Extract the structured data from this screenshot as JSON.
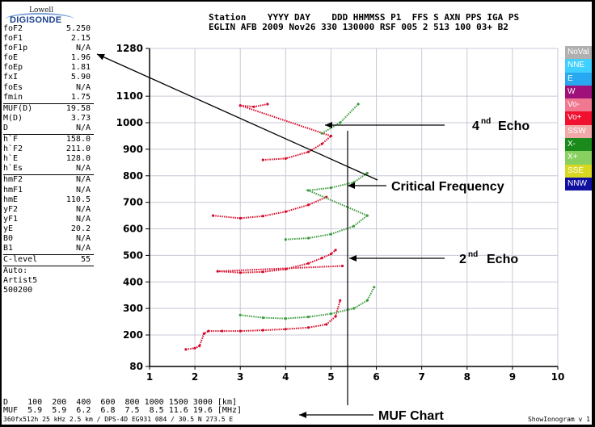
{
  "logo": {
    "line1": "Lowell",
    "line2": "DIGISONDE"
  },
  "header": {
    "line1": "Station    YYYY DAY    DDD HHMMSS P1  FFS S AXN PPS IGA PS",
    "line2": "EGLIN AFB 2009 Nov26 330 130000 RSF 005 2 513 100 03+ B2"
  },
  "params": [
    [
      {
        "k": "foF2",
        "v": "5.250"
      },
      {
        "k": "foF1",
        "v": "2.15"
      },
      {
        "k": "foF1p",
        "v": "N/A"
      },
      {
        "k": "foE",
        "v": "1.96"
      },
      {
        "k": "foEp",
        "v": "1.81"
      },
      {
        "k": "fxI",
        "v": "5.90"
      },
      {
        "k": "foEs",
        "v": "N/A"
      },
      {
        "k": "fmin",
        "v": "1.75"
      }
    ],
    [
      {
        "k": "MUF(D)",
        "v": "19.58"
      },
      {
        "k": "M(D)",
        "v": "3.73"
      },
      {
        "k": "D",
        "v": "N/A"
      }
    ],
    [
      {
        "k": "h`F",
        "v": "158.0"
      },
      {
        "k": "h`F2",
        "v": "211.0"
      },
      {
        "k": "h`E",
        "v": "128.0"
      },
      {
        "k": "h`Es",
        "v": "N/A"
      }
    ],
    [
      {
        "k": "hmF2",
        "v": "N/A"
      },
      {
        "k": "hmF1",
        "v": "N/A"
      },
      {
        "k": "hmE",
        "v": "110.5"
      },
      {
        "k": "yF2",
        "v": "N/A"
      },
      {
        "k": "yF1",
        "v": "N/A"
      },
      {
        "k": "yE",
        "v": "20.2"
      },
      {
        "k": "B0",
        "v": "N/A"
      },
      {
        "k": "B1",
        "v": "N/A"
      }
    ],
    [
      {
        "k": "C-level",
        "v": "55"
      }
    ],
    [
      {
        "k": "Auto:",
        "v": ""
      },
      {
        "k": "Artist5",
        "v": ""
      },
      {
        "k": "500200",
        "v": ""
      }
    ]
  ],
  "legend": [
    {
      "label": "NoVal",
      "color": "#b0b0b0"
    },
    {
      "label": "NNE",
      "color": "#3fd0ff"
    },
    {
      "label": "E",
      "color": "#28a8f0"
    },
    {
      "label": "W",
      "color": "#a0107a"
    },
    {
      "label": "Vo-",
      "color": "#f07890"
    },
    {
      "label": "Vo+",
      "color": "#f01030"
    },
    {
      "label": "SSW",
      "color": "#f0a8a8"
    },
    {
      "label": "X-",
      "color": "#1a8a1a"
    },
    {
      "label": "X+",
      "color": "#88d060"
    },
    {
      "label": "SSE",
      "color": "#d8d820"
    },
    {
      "label": "NNW",
      "color": "#1010a0"
    }
  ],
  "muf": {
    "line1": "D    100  200  400  600  800 1000 1500 3000 [km]",
    "line2": "MUF  5.9  5.9  6.2  6.8  7.5  8.5 11.6 19.6 [MHz]"
  },
  "footer": {
    "left": "360fx512h 25 kHz 2.5 km / DPS-4D EG931 084 / 30.5 N 273.5 E",
    "right": "ShowIonogram v 1"
  },
  "annotations": {
    "echo4": "4",
    "echo4_sup": "nd",
    "echo4_rest": "Echo",
    "critical": "Critical Frequency",
    "echo2": "2",
    "echo2_sup": "nd",
    "echo2_rest": "Echo",
    "muf_chart": "MUF Chart"
  },
  "chart_data": {
    "type": "scatter",
    "xlim": [
      1,
      10
    ],
    "ylim": [
      80,
      1280
    ],
    "xticks": [
      "1",
      "2",
      "3",
      "4",
      "5",
      "6",
      "7",
      "8",
      "9",
      "10"
    ],
    "yticks": [
      "80",
      "200",
      "300",
      "400",
      "500",
      "600",
      "700",
      "800",
      "900",
      "1000",
      "1100",
      "1280"
    ],
    "grid": true,
    "series": [
      {
        "name": "Vo+",
        "color": "#d80828",
        "points": [
          [
            1.8,
            145
          ],
          [
            2.0,
            150
          ],
          [
            2.1,
            158
          ],
          [
            2.2,
            205
          ],
          [
            2.3,
            215
          ],
          [
            2.6,
            215
          ],
          [
            3.0,
            215
          ],
          [
            3.5,
            218
          ],
          [
            4.0,
            222
          ],
          [
            4.5,
            228
          ],
          [
            4.9,
            240
          ],
          [
            5.1,
            270
          ],
          [
            5.2,
            330
          ],
          [
            5.25,
            460
          ],
          [
            2.5,
            440
          ],
          [
            3.0,
            435
          ],
          [
            3.5,
            438
          ],
          [
            4.0,
            448
          ],
          [
            4.5,
            470
          ],
          [
            4.8,
            490
          ],
          [
            5.0,
            505
          ],
          [
            5.1,
            520
          ],
          [
            2.4,
            650
          ],
          [
            3.0,
            640
          ],
          [
            3.5,
            648
          ],
          [
            4.0,
            665
          ],
          [
            4.5,
            690
          ],
          [
            4.9,
            720
          ],
          [
            3.5,
            860
          ],
          [
            4.0,
            865
          ],
          [
            4.5,
            890
          ],
          [
            4.8,
            920
          ],
          [
            5.0,
            950
          ],
          [
            3.0,
            1065
          ],
          [
            3.3,
            1060
          ],
          [
            3.6,
            1070
          ]
        ]
      },
      {
        "name": "X+",
        "color": "#3c9c3c",
        "points": [
          [
            3.0,
            275
          ],
          [
            3.5,
            265
          ],
          [
            4.0,
            262
          ],
          [
            4.5,
            268
          ],
          [
            5.0,
            280
          ],
          [
            5.5,
            300
          ],
          [
            5.8,
            330
          ],
          [
            5.95,
            380
          ],
          [
            4.0,
            560
          ],
          [
            4.5,
            565
          ],
          [
            5.0,
            580
          ],
          [
            5.5,
            610
          ],
          [
            5.8,
            650
          ],
          [
            4.5,
            745
          ],
          [
            5.0,
            755
          ],
          [
            5.5,
            775
          ],
          [
            5.8,
            810
          ],
          [
            4.8,
            960
          ],
          [
            5.2,
            1000
          ],
          [
            5.6,
            1070
          ]
        ]
      }
    ]
  }
}
